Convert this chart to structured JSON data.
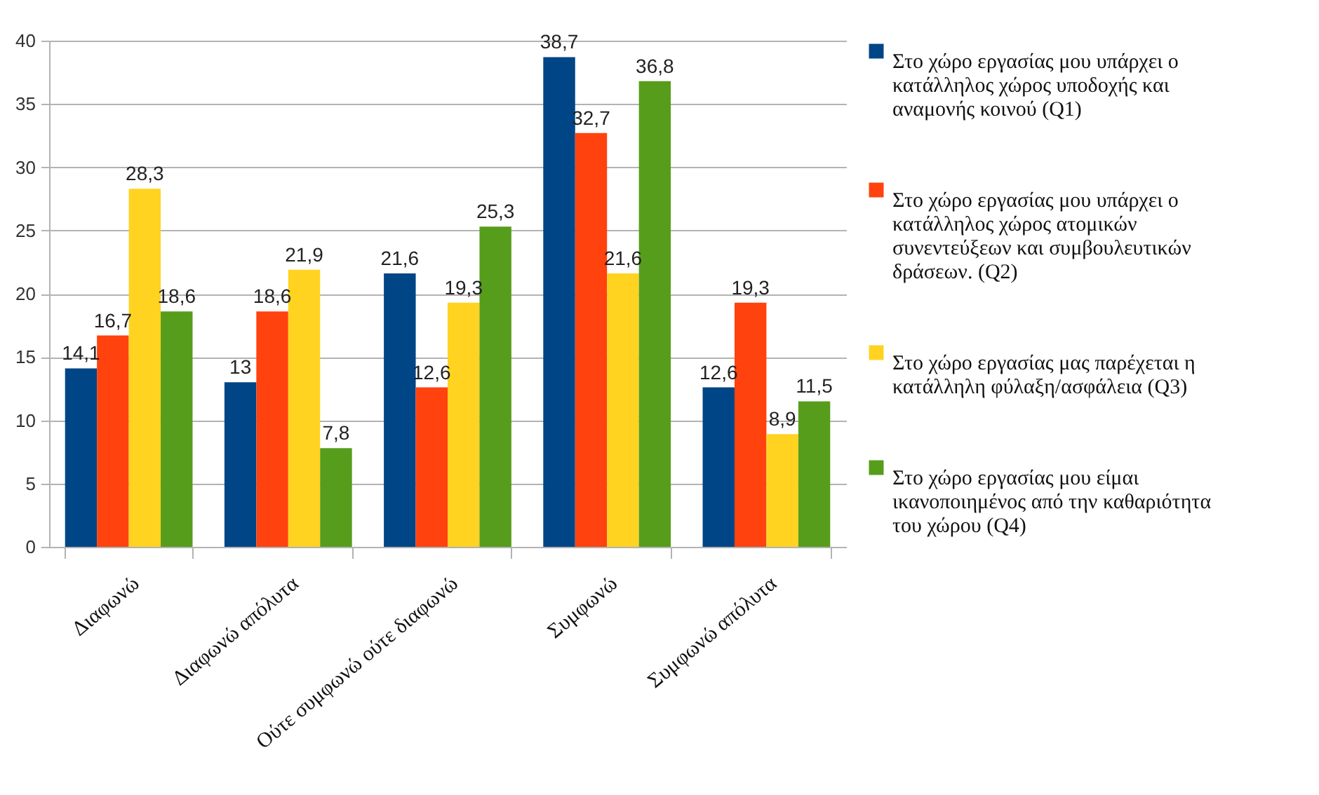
{
  "chart_data": {
    "type": "bar",
    "categories": [
      "Διαφωνώ",
      "Διαφωνώ απόλυτα",
      "Ούτε συμφωνώ ούτε διαφωνώ",
      "Συμφωνώ",
      "Συμφωνώ απόλυτα"
    ],
    "series": [
      {
        "name": "Στο χώρο εργασίας μου υπάρχει ο κατάλληλος χώρος υποδοχής και αναμονής κοινού (Q1)",
        "color": "#004586",
        "values": [
          14.1,
          13,
          21.6,
          38.7,
          12.6
        ],
        "value_labels": [
          "14,1",
          "13",
          "21,6",
          "38,7",
          "12,6"
        ]
      },
      {
        "name": "Στο χώρο εργασίας μου υπάρχει ο κατάλληλος χώρος ατομικών συνεντεύξεων και συμβουλευτικών δράσεων. (Q2)",
        "color": "#ff420e",
        "values": [
          16.7,
          18.6,
          12.6,
          32.7,
          19.3
        ],
        "value_labels": [
          "16,7",
          "18,6",
          "12,6",
          "32,7",
          "19,3"
        ]
      },
      {
        "name": "Στο χώρο εργασίας μας παρέχεται η κατάλληλη φύλαξη/ασφάλεια (Q3)",
        "color": "#ffd320",
        "values": [
          28.3,
          21.9,
          19.3,
          21.6,
          8.9
        ],
        "value_labels": [
          "28,3",
          "21,9",
          "19,3",
          "21,6",
          "8,9"
        ]
      },
      {
        "name": "Στο χώρο εργασίας μου είμαι ικανοποιημένος από την καθαριότητα του χώρου (Q4)",
        "color": "#579d1c",
        "values": [
          18.6,
          7.8,
          25.3,
          36.8,
          11.5
        ],
        "value_labels": [
          "18,6",
          "7,8",
          "25,3",
          "36,8",
          "11,5"
        ]
      }
    ],
    "ylim": [
      0,
      40
    ],
    "yticks": [
      0,
      5,
      10,
      15,
      20,
      25,
      30,
      35,
      40
    ],
    "grid": "y",
    "legend": "right"
  }
}
